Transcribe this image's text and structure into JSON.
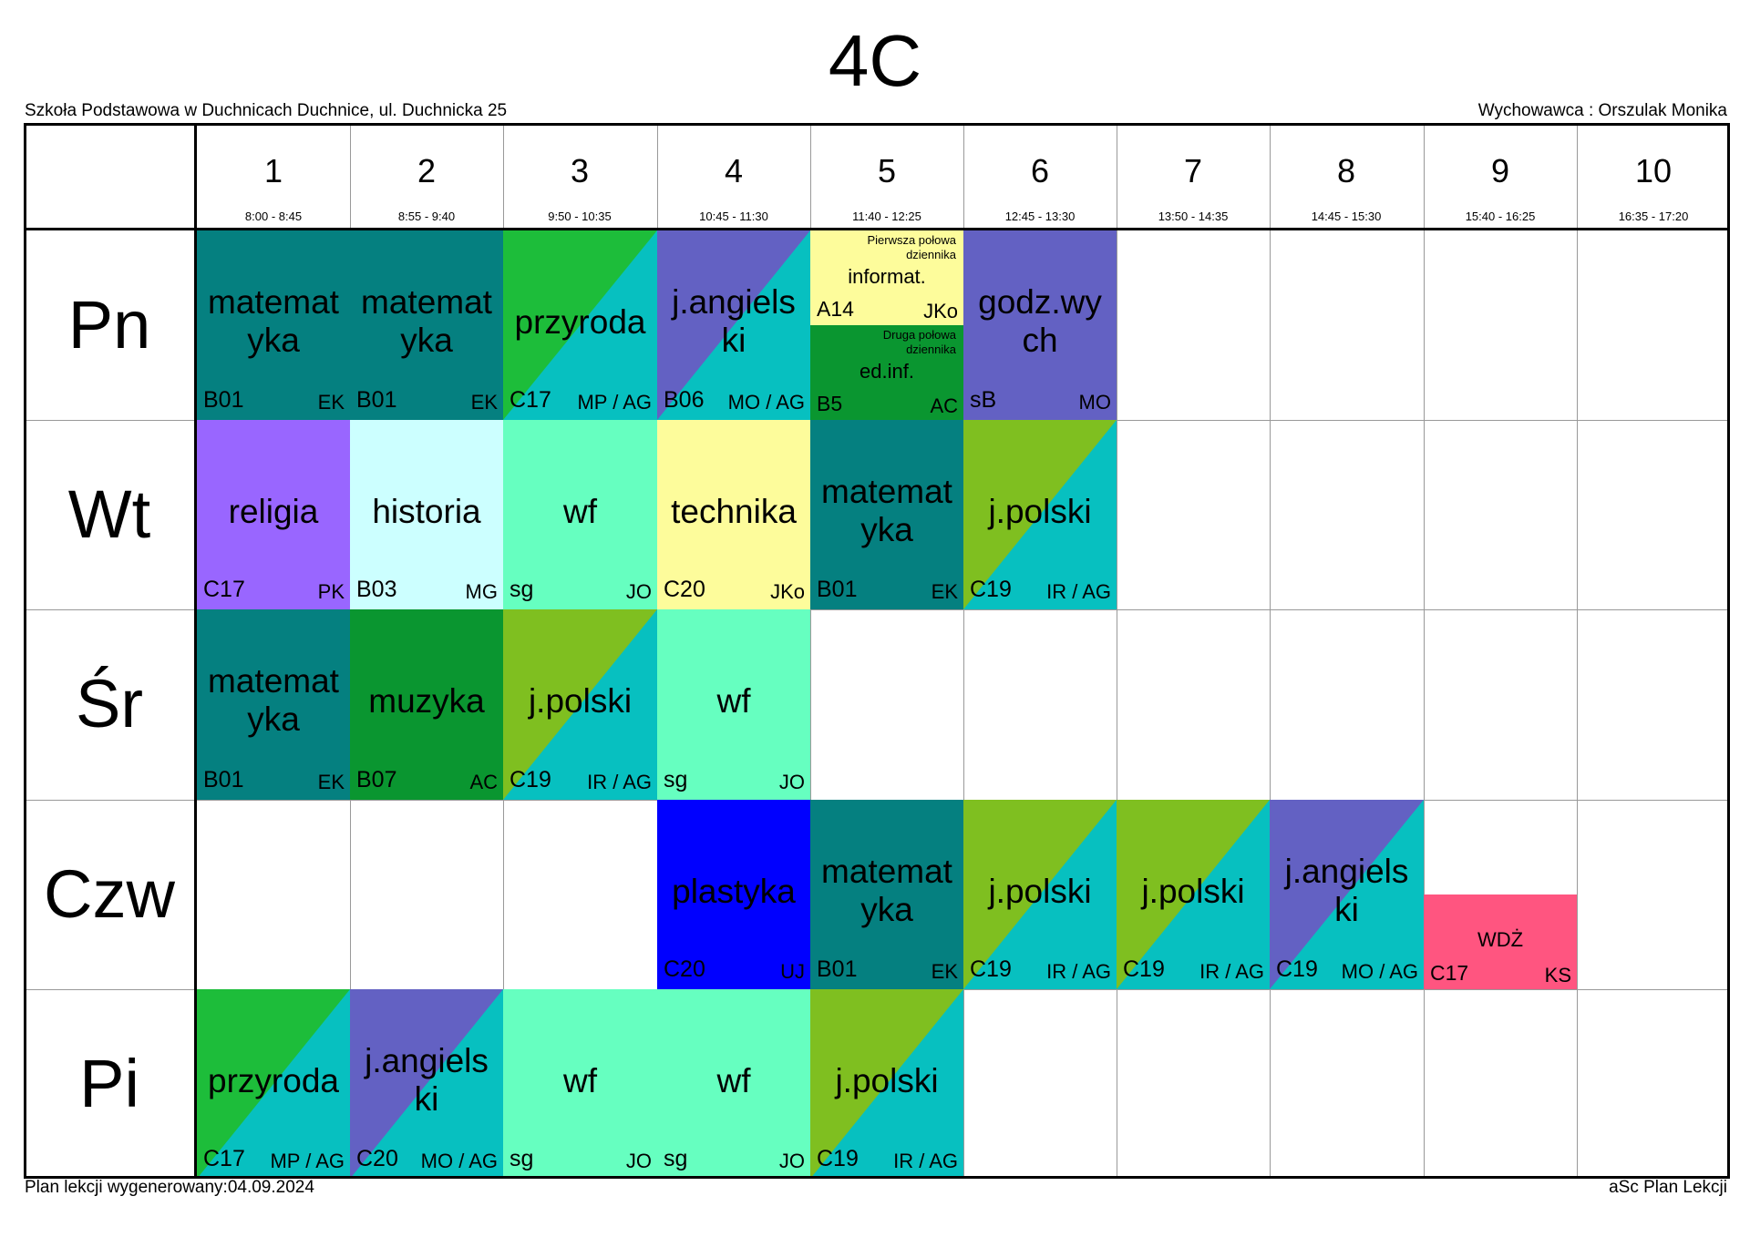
{
  "class_title": "4C",
  "school": "Szkoła Podstawowa w Duchnicach Duchnice, ul. Duchnicka 25",
  "teacher_header": "Wychowawca : Orszulak Monika",
  "footer_left": "Plan lekcji wygenerowany:04.09.2024",
  "footer_right": "aSc Plan Lekcji",
  "periods": [
    {
      "n": "1",
      "time": "8:00 - 8:45"
    },
    {
      "n": "2",
      "time": "8:55 - 9:40"
    },
    {
      "n": "3",
      "time": "9:50 - 10:35"
    },
    {
      "n": "4",
      "time": "10:45 - 11:30"
    },
    {
      "n": "5",
      "time": "11:40 - 12:25"
    },
    {
      "n": "6",
      "time": "12:45 - 13:30"
    },
    {
      "n": "7",
      "time": "13:50 - 14:35"
    },
    {
      "n": "8",
      "time": "14:45 - 15:30"
    },
    {
      "n": "9",
      "time": "15:40 - 16:25"
    },
    {
      "n": "10",
      "time": "16:35 - 17:20"
    }
  ],
  "days": [
    "Pn",
    "Wt",
    "Śr",
    "Czw",
    "Pi"
  ],
  "colors": {
    "math_teal": "#058080",
    "green": "#1dbd3a",
    "cyan": "#07c0c0",
    "purple": "#6361c3",
    "lime": "#7fbf20",
    "light_yellow": "#fdfc9b",
    "dark_green": "#0a9630",
    "violet": "#9966ff",
    "pale_cyan": "#ccffff",
    "aqua_green": "#66ffc0",
    "blue": "#0000ff",
    "pink": "#ff5580"
  },
  "lessons": [
    {
      "day": 0,
      "period": 0,
      "subject": "matemat\nyka",
      "room": "B01",
      "teacher": "EK",
      "c1": "#058080",
      "c2": "#058080"
    },
    {
      "day": 0,
      "period": 1,
      "subject": "matemat\nyka",
      "room": "B01",
      "teacher": "EK",
      "c1": "#058080",
      "c2": "#058080"
    },
    {
      "day": 0,
      "period": 2,
      "subject": "przyroda",
      "room": "C17",
      "teacher": "MP / AG",
      "c1": "#1dbd3a",
      "c2": "#07c0c0"
    },
    {
      "day": 0,
      "period": 3,
      "subject": "j.angiels\nki",
      "room": "B06",
      "teacher": "MO / AG",
      "c1": "#6361c3",
      "c2": "#07c0c0"
    },
    {
      "day": 0,
      "period": 5,
      "subject": "godz.wy\nch",
      "room": "sB",
      "teacher": "MO",
      "c1": "#6361c3",
      "c2": "#6361c3"
    },
    {
      "day": 1,
      "period": 0,
      "subject": "religia",
      "room": "C17",
      "teacher": "PK",
      "c1": "#9966ff",
      "c2": "#9966ff"
    },
    {
      "day": 1,
      "period": 1,
      "subject": "historia",
      "room": "B03",
      "teacher": "MG",
      "c1": "#ccffff",
      "c2": "#ccffff"
    },
    {
      "day": 1,
      "period": 2,
      "subject": "wf",
      "room": "sg",
      "teacher": "JO",
      "c1": "#66ffc0",
      "c2": "#66ffc0"
    },
    {
      "day": 1,
      "period": 3,
      "subject": "technika",
      "room": "C20",
      "teacher": "JKo",
      "c1": "#fdfc9b",
      "c2": "#fdfc9b"
    },
    {
      "day": 1,
      "period": 4,
      "subject": "matemat\nyka",
      "room": "B01",
      "teacher": "EK",
      "c1": "#058080",
      "c2": "#058080"
    },
    {
      "day": 1,
      "period": 5,
      "subject": "j.polski",
      "room": "C19",
      "teacher": "IR / AG",
      "c1": "#7fbf20",
      "c2": "#07c0c0"
    },
    {
      "day": 2,
      "period": 0,
      "subject": "matemat\nyka",
      "room": "B01",
      "teacher": "EK",
      "c1": "#058080",
      "c2": "#058080"
    },
    {
      "day": 2,
      "period": 1,
      "subject": "muzyka",
      "room": "B07",
      "teacher": "AC",
      "c1": "#0a9630",
      "c2": "#0a9630"
    },
    {
      "day": 2,
      "period": 2,
      "subject": "j.polski",
      "room": "C19",
      "teacher": "IR / AG",
      "c1": "#7fbf20",
      "c2": "#07c0c0"
    },
    {
      "day": 2,
      "period": 3,
      "subject": "wf",
      "room": "sg",
      "teacher": "JO",
      "c1": "#66ffc0",
      "c2": "#66ffc0"
    },
    {
      "day": 3,
      "period": 3,
      "subject": "plastyka",
      "room": "C20",
      "teacher": "UJ",
      "c1": "#0000ff",
      "c2": "#0000ff"
    },
    {
      "day": 3,
      "period": 4,
      "subject": "matemat\nyka",
      "room": "B01",
      "teacher": "EK",
      "c1": "#058080",
      "c2": "#058080"
    },
    {
      "day": 3,
      "period": 5,
      "subject": "j.polski",
      "room": "C19",
      "teacher": "IR / AG",
      "c1": "#7fbf20",
      "c2": "#07c0c0"
    },
    {
      "day": 3,
      "period": 6,
      "subject": "j.polski",
      "room": "C19",
      "teacher": "IR / AG",
      "c1": "#7fbf20",
      "c2": "#07c0c0"
    },
    {
      "day": 3,
      "period": 7,
      "subject": "j.angiels\nki",
      "room": "C19",
      "teacher": "MO / AG",
      "c1": "#6361c3",
      "c2": "#07c0c0"
    },
    {
      "day": 4,
      "period": 0,
      "subject": "przyroda",
      "room": "C17",
      "teacher": "MP / AG",
      "c1": "#1dbd3a",
      "c2": "#07c0c0"
    },
    {
      "day": 4,
      "period": 1,
      "subject": "j.angiels\nki",
      "room": "C20",
      "teacher": "MO / AG",
      "c1": "#6361c3",
      "c2": "#07c0c0"
    },
    {
      "day": 4,
      "period": 2,
      "subject": "wf",
      "room": "sg",
      "teacher": "JO",
      "c1": "#66ffc0",
      "c2": "#66ffc0"
    },
    {
      "day": 4,
      "period": 3,
      "subject": "wf",
      "room": "sg",
      "teacher": "JO",
      "c1": "#66ffc0",
      "c2": "#66ffc0"
    },
    {
      "day": 4,
      "period": 4,
      "subject": "j.polski",
      "room": "C19",
      "teacher": "IR / AG",
      "c1": "#7fbf20",
      "c2": "#07c0c0"
    }
  ],
  "split_lesson": {
    "day": 0,
    "period": 4,
    "top": {
      "note": "Pierwsza połowa\ndziennika",
      "subject": "informat.",
      "room": "A14",
      "teacher": "JKo",
      "color": "#fdfc9b"
    },
    "bottom": {
      "note": "Druga połowa\ndziennika",
      "subject": "ed.inf.",
      "room": "B5",
      "teacher": "AC",
      "color": "#0a9630"
    }
  },
  "wdz_lesson": {
    "day": 3,
    "period": 8,
    "subject": "WDŻ",
    "room": "C17",
    "teacher": "KS",
    "color": "#ff5580"
  }
}
